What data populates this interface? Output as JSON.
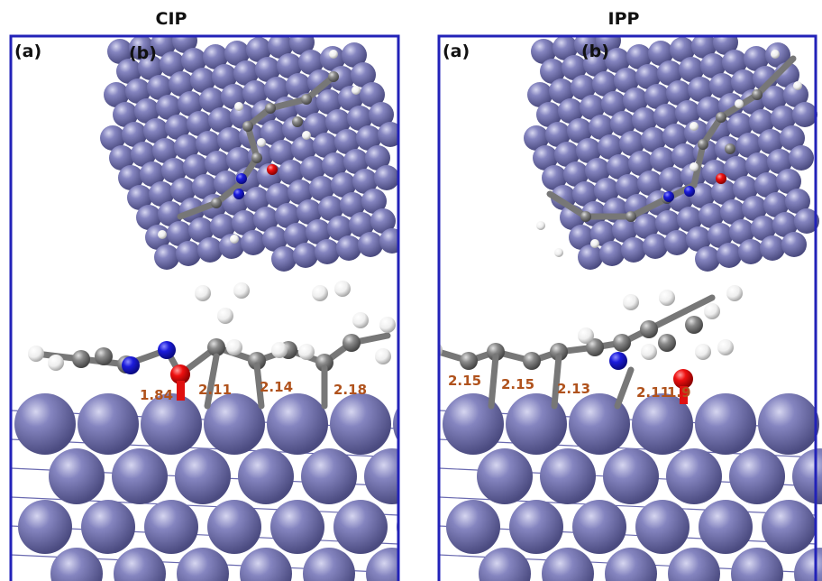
{
  "panels": [
    {
      "title": "CIP",
      "labels": [
        "(a)",
        "(b)"
      ],
      "distances": [
        "1.84",
        "2.11",
        "2.14",
        "2.18"
      ]
    },
    {
      "title": "IPP",
      "labels": [
        "(a)",
        "(b)"
      ],
      "distances": [
        "2.15",
        "2.15",
        "2.13",
        "2.11",
        "1.9"
      ]
    }
  ]
}
